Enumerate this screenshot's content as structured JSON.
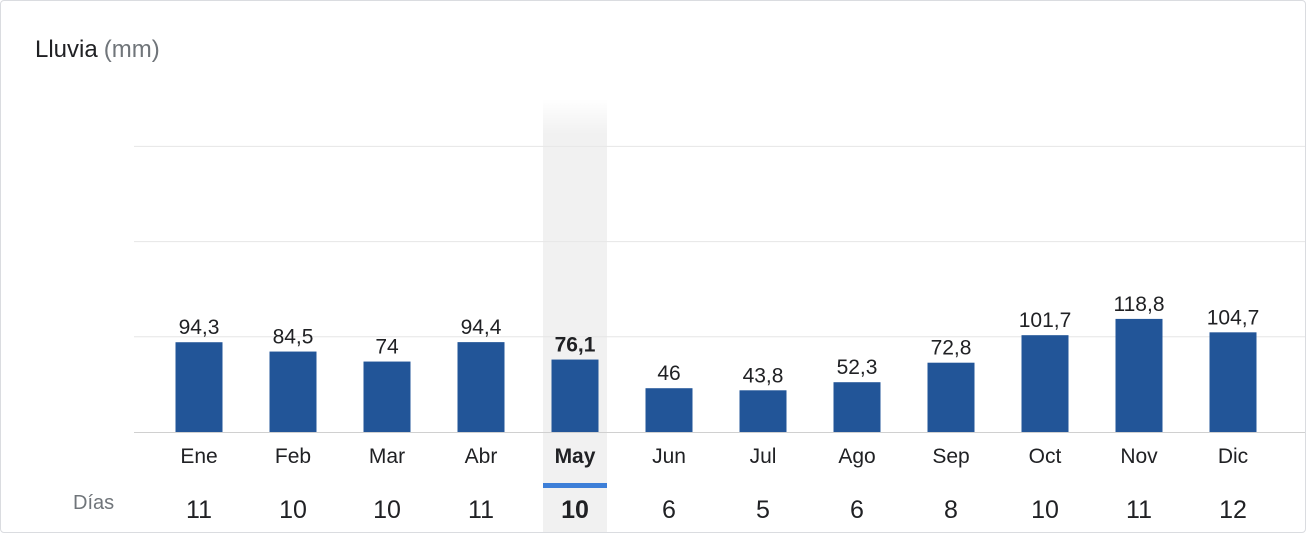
{
  "header": {
    "title": "Lluvia",
    "unit": "(mm)"
  },
  "days_row": {
    "label": "Días"
  },
  "colors": {
    "bar": "#225598",
    "selected_column_bg": "#f1f1f1",
    "selected_indicator": "#3d7fd8",
    "grid": "#e6e6e6",
    "axis": "#d0d0d0",
    "label_text": "#202124",
    "muted_text": "#70757a"
  },
  "chart_data": {
    "type": "bar",
    "title": "Lluvia (mm)",
    "categories": [
      "Ene",
      "Feb",
      "Mar",
      "Abr",
      "May",
      "Jun",
      "Jul",
      "Ago",
      "Sep",
      "Oct",
      "Nov",
      "Dic"
    ],
    "values": [
      94.3,
      84.5,
      74,
      94.4,
      76.1,
      46,
      43.8,
      52.3,
      72.8,
      101.7,
      118.8,
      104.7
    ],
    "value_labels": [
      "94,3",
      "84,5",
      "74",
      "94,4",
      "76,1",
      "46",
      "43,8",
      "52,3",
      "72,8",
      "101,7",
      "118,8",
      "104,7"
    ],
    "days": [
      "11",
      "10",
      "10",
      "11",
      "10",
      "6",
      "5",
      "6",
      "8",
      "10",
      "11",
      "12"
    ],
    "selected_index": 4,
    "ylim": [
      0,
      300
    ],
    "grid": true
  }
}
